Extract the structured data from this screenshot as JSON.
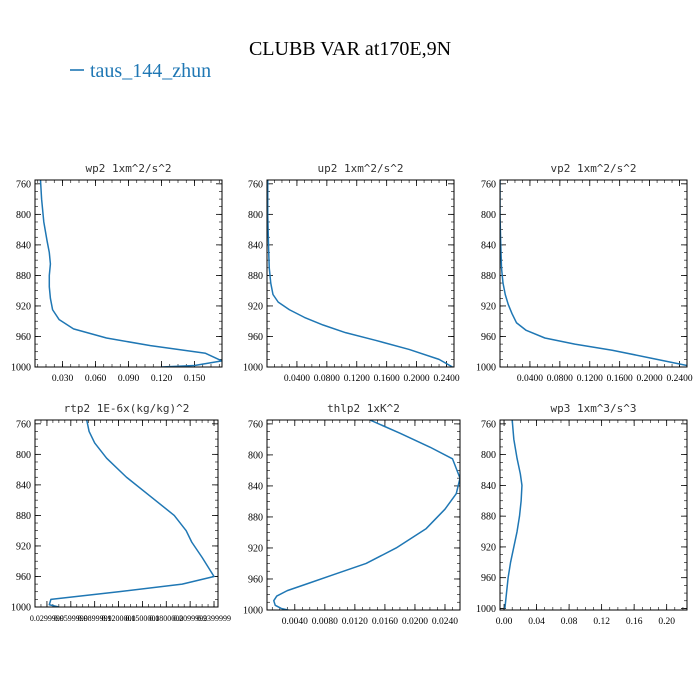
{
  "title": "CLUBB VAR at170E,9N",
  "legend": {
    "label": "taus_144_zhun",
    "color": "#1f77b4"
  },
  "chart_data": [
    {
      "type": "line",
      "title": "wp2  1xm^2/s^2",
      "xlim": [
        0.005,
        0.175
      ],
      "ylim": [
        1000,
        755
      ],
      "yticks": [
        760,
        800,
        840,
        880,
        920,
        960,
        1000
      ],
      "xticks": [
        0.03,
        0.06,
        0.09,
        0.12,
        0.15
      ],
      "xticklabels": [
        "0.030",
        "0.060",
        "0.090",
        "0.120",
        "0.150"
      ],
      "series": [
        {
          "x": [
            0.01,
            0.011,
            0.013,
            0.016,
            0.018,
            0.019,
            0.018,
            0.018,
            0.019,
            0.021,
            0.027,
            0.04,
            0.07,
            0.11,
            0.16,
            0.175,
            0.15,
            0.12
          ],
          "y": [
            755,
            780,
            810,
            835,
            850,
            865,
            880,
            895,
            910,
            925,
            938,
            950,
            962,
            972,
            982,
            992,
            998,
            1000
          ]
        }
      ]
    },
    {
      "type": "line",
      "title": "up2  1xm^2/s^2",
      "xlim": [
        0.0,
        0.25
      ],
      "ylim": [
        1000,
        755
      ],
      "yticks": [
        760,
        800,
        840,
        880,
        920,
        960,
        1000
      ],
      "xticks": [
        0.04,
        0.08,
        0.12,
        0.16,
        0.2,
        0.24
      ],
      "xticklabels": [
        "0.0400",
        "0.0800",
        "0.1200",
        "0.1600",
        "0.2000",
        "0.2400"
      ],
      "series": [
        {
          "x": [
            0.001,
            0.001,
            0.002,
            0.003,
            0.005,
            0.008,
            0.015,
            0.03,
            0.05,
            0.075,
            0.105,
            0.145,
            0.19,
            0.23,
            0.248
          ],
          "y": [
            755,
            800,
            840,
            870,
            890,
            905,
            915,
            925,
            935,
            945,
            955,
            965,
            977,
            990,
            1000
          ]
        }
      ]
    },
    {
      "type": "line",
      "title": "vp2  1xm^2/s^2",
      "xlim": [
        0.0,
        0.25
      ],
      "ylim": [
        1000,
        755
      ],
      "yticks": [
        760,
        800,
        840,
        880,
        920,
        960,
        1000
      ],
      "xticks": [
        0.04,
        0.08,
        0.12,
        0.16,
        0.2,
        0.24
      ],
      "xticklabels": [
        "0.0400",
        "0.0800",
        "0.1200",
        "0.1600",
        "0.2000",
        "0.2400"
      ],
      "series": [
        {
          "x": [
            0.0,
            0.0,
            0.001,
            0.002,
            0.004,
            0.007,
            0.011,
            0.016,
            0.022,
            0.035,
            0.06,
            0.1,
            0.15,
            0.2,
            0.25
          ],
          "y": [
            755,
            800,
            840,
            870,
            890,
            905,
            918,
            930,
            942,
            952,
            962,
            970,
            978,
            988,
            998
          ]
        }
      ]
    },
    {
      "type": "line",
      "title": "rtp2  1E-6x(kg/kg)^2",
      "xlim": [
        0.015,
        0.245
      ],
      "ylim": [
        1000,
        755
      ],
      "yticks": [
        760,
        800,
        840,
        880,
        920,
        960,
        1000
      ],
      "xticks": [
        0.03,
        0.06,
        0.09,
        0.12,
        0.15,
        0.18,
        0.21,
        0.24
      ],
      "xticklabels": [
        "0.0299999",
        "0.0599999",
        "0.0899999",
        "0.1200000",
        "0.1500000",
        "0.1800000",
        "0.2099999",
        "0.2399999"
      ],
      "series": [
        {
          "x": [
            0.08,
            0.083,
            0.09,
            0.105,
            0.13,
            0.16,
            0.19,
            0.205,
            0.212,
            0.225,
            0.24,
            0.2,
            0.12,
            0.06,
            0.035,
            0.033,
            0.045
          ],
          "y": [
            755,
            770,
            785,
            805,
            830,
            855,
            880,
            900,
            915,
            935,
            960,
            970,
            980,
            987,
            990,
            997,
            1000
          ]
        }
      ]
    },
    {
      "type": "line",
      "title": "thlp2  1xK^2",
      "xlim": [
        0.0003,
        0.026
      ],
      "ylim": [
        1000,
        755
      ],
      "yticks": [
        760,
        800,
        840,
        880,
        920,
        960,
        1000
      ],
      "xticks": [
        0.004,
        0.008,
        0.012,
        0.016,
        0.02,
        0.024
      ],
      "xticklabels": [
        "0.0040",
        "0.0080",
        "0.0120",
        "0.0160",
        "0.0200",
        "0.0240"
      ],
      "series": [
        {
          "x": [
            0.014,
            0.018,
            0.022,
            0.025,
            0.026,
            0.0255,
            0.024,
            0.0215,
            0.0175,
            0.0135,
            0.009,
            0.006,
            0.003,
            0.0016,
            0.0012,
            0.0014,
            0.0022,
            0.004
          ],
          "y": [
            755,
            772,
            790,
            805,
            830,
            850,
            870,
            895,
            920,
            940,
            955,
            965,
            975,
            982,
            988,
            994,
            998,
            1002
          ]
        }
      ]
    },
    {
      "type": "line",
      "title": "wp3  1xm^3/s^3",
      "xlim": [
        -0.005,
        0.225
      ],
      "ylim": [
        1002,
        755
      ],
      "yticks": [
        760,
        800,
        840,
        880,
        920,
        960,
        1000
      ],
      "xticks": [
        0.0,
        0.04,
        0.08,
        0.12,
        0.16,
        0.2
      ],
      "xticklabels": [
        "0.00",
        "0.04",
        "0.08",
        "0.12",
        "0.16",
        "0.20"
      ],
      "series": [
        {
          "x": [
            0.01,
            0.012,
            0.016,
            0.02,
            0.022,
            0.021,
            0.019,
            0.016,
            0.012,
            0.008,
            0.005,
            0.003,
            0.002,
            0.001
          ],
          "y": [
            755,
            780,
            805,
            825,
            840,
            860,
            880,
            900,
            920,
            940,
            960,
            980,
            990,
            1000
          ]
        }
      ]
    }
  ]
}
